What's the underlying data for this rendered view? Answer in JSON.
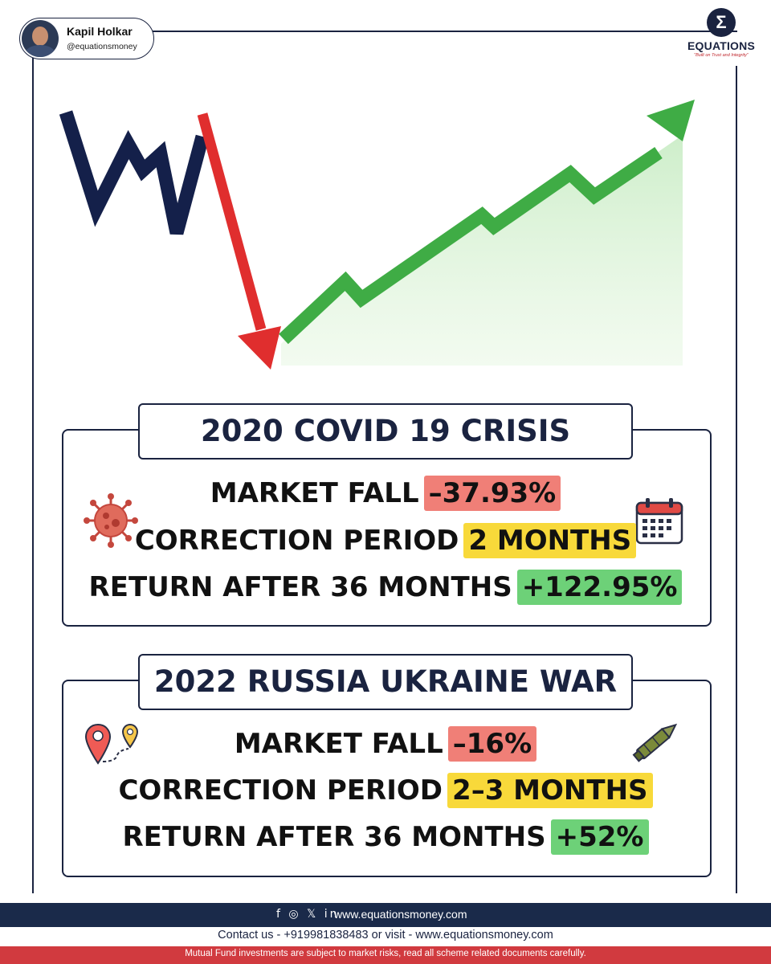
{
  "author": {
    "name": "Kapil Holkar",
    "handle": "@equationsmoney"
  },
  "brand": {
    "name": "EQUATIONS",
    "tagline": "\"Built on Trust and Integrity\"",
    "logo_symbol": "Σ"
  },
  "colors": {
    "navy": "#1a2340",
    "red": "#d13a3f",
    "green": "#4aaa4f",
    "yellow": "#f8d93a"
  },
  "sections": [
    {
      "title": "2020 COVID 19 CRISIS",
      "left_icon": "virus-icon",
      "right_icon": "calendar-icon",
      "rows": [
        {
          "label": "MARKET FALL",
          "value": "–37.93%"
        },
        {
          "label": "CORRECTION PERIOD",
          "value": "2 MONTHS"
        },
        {
          "label": "RETURN AFTER 36 MONTHS",
          "value": "+122.95%"
        }
      ]
    },
    {
      "title": "2022 RUSSIA UKRAINE WAR",
      "left_icon": "map-pin-route-icon",
      "right_icon": "missile-icon",
      "rows": [
        {
          "label": "MARKET FALL",
          "value": "–16%"
        },
        {
          "label": "CORRECTION PERIOD",
          "value": "2–3 MONTHS"
        },
        {
          "label": "RETURN AFTER 36 MONTHS",
          "value": "+52%"
        }
      ]
    }
  ],
  "footer": {
    "social_icons": [
      "facebook-icon",
      "instagram-icon",
      "x-icon",
      "linkedin-icon"
    ],
    "social_glyphs": "f ◎ 𝕏 in",
    "website": "www.equationsmoney.com",
    "contact": "Contact us - +919981838483 or visit - www.equationsmoney.com",
    "disclaimer": "Mutual Fund investments are subject to market risks, read all scheme related documents carefully."
  }
}
